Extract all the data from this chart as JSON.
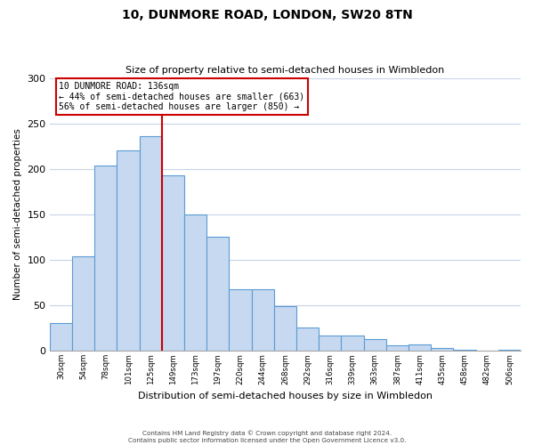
{
  "title": "10, DUNMORE ROAD, LONDON, SW20 8TN",
  "subtitle": "Size of property relative to semi-detached houses in Wimbledon",
  "xlabel": "Distribution of semi-detached houses by size in Wimbledon",
  "ylabel": "Number of semi-detached properties",
  "bar_labels": [
    "30sqm",
    "54sqm",
    "78sqm",
    "101sqm",
    "125sqm",
    "149sqm",
    "173sqm",
    "197sqm",
    "220sqm",
    "244sqm",
    "268sqm",
    "292sqm",
    "316sqm",
    "339sqm",
    "363sqm",
    "387sqm",
    "411sqm",
    "435sqm",
    "458sqm",
    "482sqm",
    "506sqm"
  ],
  "bar_values": [
    30,
    104,
    204,
    220,
    236,
    193,
    150,
    125,
    68,
    68,
    49,
    25,
    17,
    17,
    13,
    6,
    7,
    3,
    1,
    0,
    1
  ],
  "bar_color": "#c6d9f0",
  "bar_edge_color": "#5b9bd5",
  "property_line_x": 4.5,
  "property_line_color": "#cc0000",
  "ylim": [
    0,
    300
  ],
  "yticks": [
    0,
    50,
    100,
    150,
    200,
    250,
    300
  ],
  "annotation_title": "10 DUNMORE ROAD: 136sqm",
  "annotation_line1": "← 44% of semi-detached houses are smaller (663)",
  "annotation_line2": "56% of semi-detached houses are larger (850) →",
  "annotation_box_color": "#ffffff",
  "annotation_box_edge_color": "#cc0000",
  "footer1": "Contains HM Land Registry data © Crown copyright and database right 2024.",
  "footer2": "Contains public sector information licensed under the Open Government Licence v3.0.",
  "background_color": "#ffffff",
  "grid_color": "#c8d4e8"
}
